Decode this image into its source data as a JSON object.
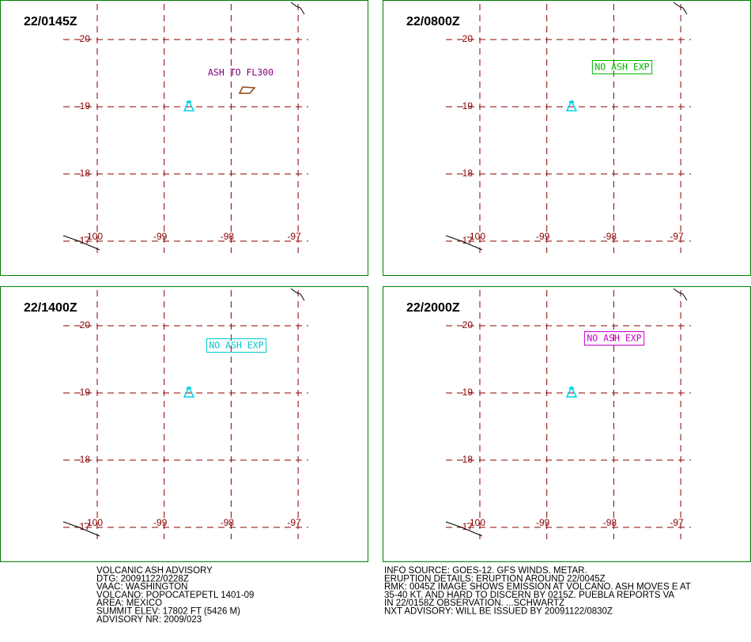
{
  "panels": [
    {
      "title": "22/0145Z",
      "annotation": "ASH TO FL300",
      "color": "#800080"
    },
    {
      "title": "22/0800Z",
      "annotation": "NO ASH EXP",
      "color": "#00b400"
    },
    {
      "title": "22/1400Z",
      "annotation": "NO ASH EXP",
      "color": "#00c8d2"
    },
    {
      "title": "22/2000Z",
      "annotation": "NO ASH EXP",
      "color": "#c800c8"
    }
  ],
  "grid": {
    "lats": [
      20,
      19,
      18,
      17
    ],
    "lons": [
      -100,
      -99,
      -98,
      -97
    ],
    "color": "#8b0000"
  },
  "advisory_left": [
    "VOLCANIC ASH ADVISORY",
    "DTG: 20091122/0228Z",
    "VAAC: WASHINGTON",
    "VOLCANO: POPOCATEPETL 1401-09",
    "AREA: MEXICO",
    "SUMMIT ELEV: 17802 FT (5426 M)",
    "ADVISORY NR: 2009/023"
  ],
  "advisory_right": [
    "INFO SOURCE: GOES-12. GFS WINDS. METAR.",
    "ERUPTION DETAILS: ERUPTION AROUND 22/0045Z",
    "RMK: 0045Z IMAGE SHOWS EMISSION AT VOLCANO. ASH MOVES E AT",
    "35-40 KT. AND HARD TO DISCERN BY 0215Z. PUEBLA REPORTS VA",
    "IN 22/0158Z OBSERVATION. ...SCHWARTZ",
    "NXT ADVISORY: WILL BE ISSUED BY 20091122/0830Z"
  ]
}
